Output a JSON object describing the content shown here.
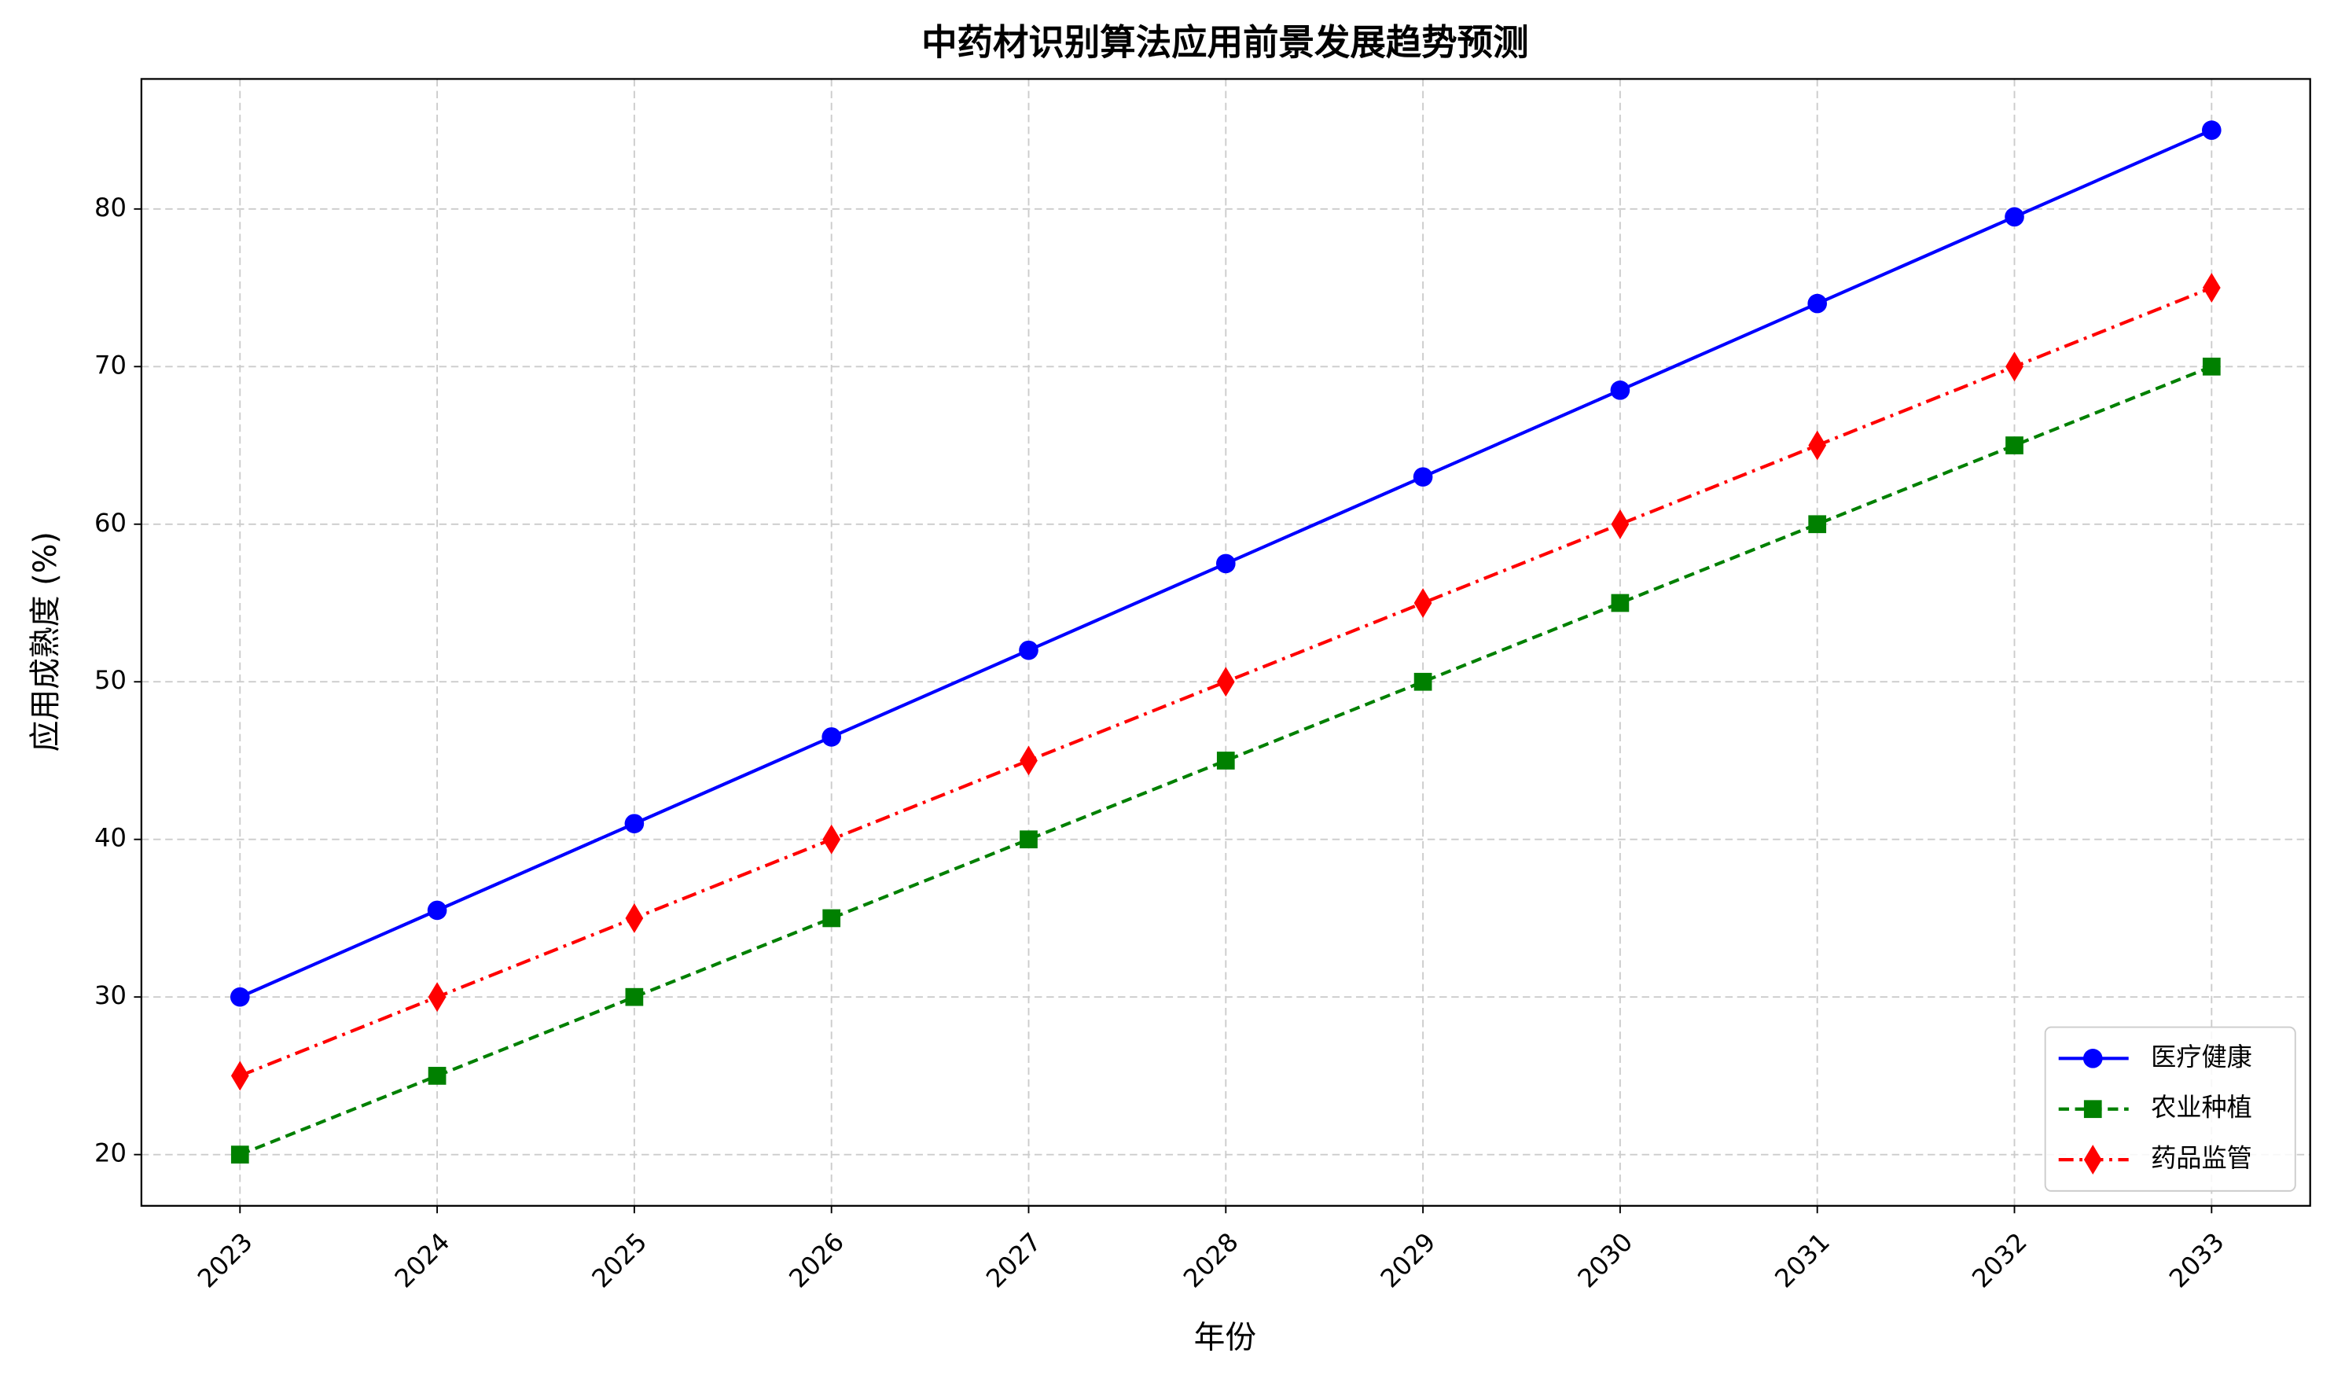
{
  "chart_data": {
    "type": "line",
    "title": "中药材识别算法应用前景发展趋势预测",
    "xlabel": "年份",
    "ylabel": "应用成熟度 (%)",
    "x": [
      2023,
      2024,
      2025,
      2026,
      2027,
      2028,
      2029,
      2030,
      2031,
      2032,
      2033
    ],
    "series": [
      {
        "name": "医疗健康",
        "color": "#0000ff",
        "linestyle": "solid",
        "marker": "circle",
        "values": [
          30,
          35.5,
          41,
          46.5,
          52,
          57.5,
          63,
          68.5,
          74,
          79.5,
          85
        ]
      },
      {
        "name": "农业种植",
        "color": "#008000",
        "linestyle": "dashed",
        "marker": "square",
        "values": [
          20,
          25,
          30,
          35,
          40,
          45,
          50,
          55,
          60,
          65,
          70
        ]
      },
      {
        "name": "药品监管",
        "color": "#ff0000",
        "linestyle": "dashdot",
        "marker": "diamond",
        "values": [
          25,
          30,
          35,
          40,
          45,
          50,
          55,
          60,
          65,
          70,
          75
        ]
      }
    ],
    "xlim": [
      2022.5,
      2033.5
    ],
    "ylim": [
      16.75,
      88.25
    ],
    "xticks": [
      2023,
      2024,
      2025,
      2026,
      2027,
      2028,
      2029,
      2030,
      2031,
      2032,
      2033
    ],
    "yticks": [
      20,
      30,
      40,
      50,
      60,
      70,
      80
    ],
    "grid": true,
    "legend": "lower right"
  }
}
